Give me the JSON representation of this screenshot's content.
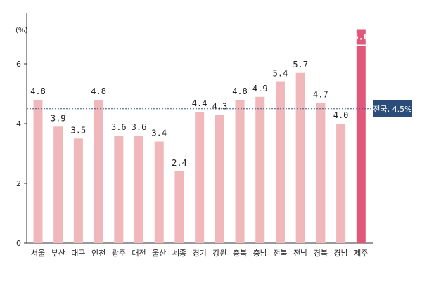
{
  "chart_data": {
    "type": "bar",
    "unit_label": "(%)",
    "categories": [
      "서울",
      "부산",
      "대구",
      "인천",
      "광주",
      "대전",
      "울산",
      "세종",
      "경기",
      "강원",
      "충북",
      "충남",
      "전북",
      "전남",
      "경북",
      "경남",
      "제주"
    ],
    "values": [
      4.8,
      3.9,
      3.5,
      4.8,
      3.6,
      3.6,
      3.4,
      2.4,
      4.4,
      4.3,
      4.8,
      4.9,
      5.4,
      5.7,
      4.7,
      4.0,
      6.6
    ],
    "value_labels": [
      "4.8",
      "3.9",
      "3.5",
      "4.8",
      "3.6",
      "3.6",
      "3.4",
      "2.4",
      "4.4",
      "4.3",
      "4.8",
      "4.9",
      "5.4",
      "5.7",
      "4.7",
      "4.0",
      "6.6"
    ],
    "highlight_category": "제주",
    "ylim": [
      0,
      8
    ],
    "yticks": [
      0,
      2,
      4,
      6
    ],
    "ytick_labels": [
      "0",
      "2",
      "4",
      "6"
    ],
    "reference_line": {
      "label": "전국, 4.5%",
      "value": 4.5
    },
    "colors": {
      "bar": "#f0b8bb",
      "highlight": "#e0577a",
      "reference_line": "#3a5a8c",
      "reference_box": "#2b4d7a"
    },
    "grid": false,
    "legend": "none"
  }
}
